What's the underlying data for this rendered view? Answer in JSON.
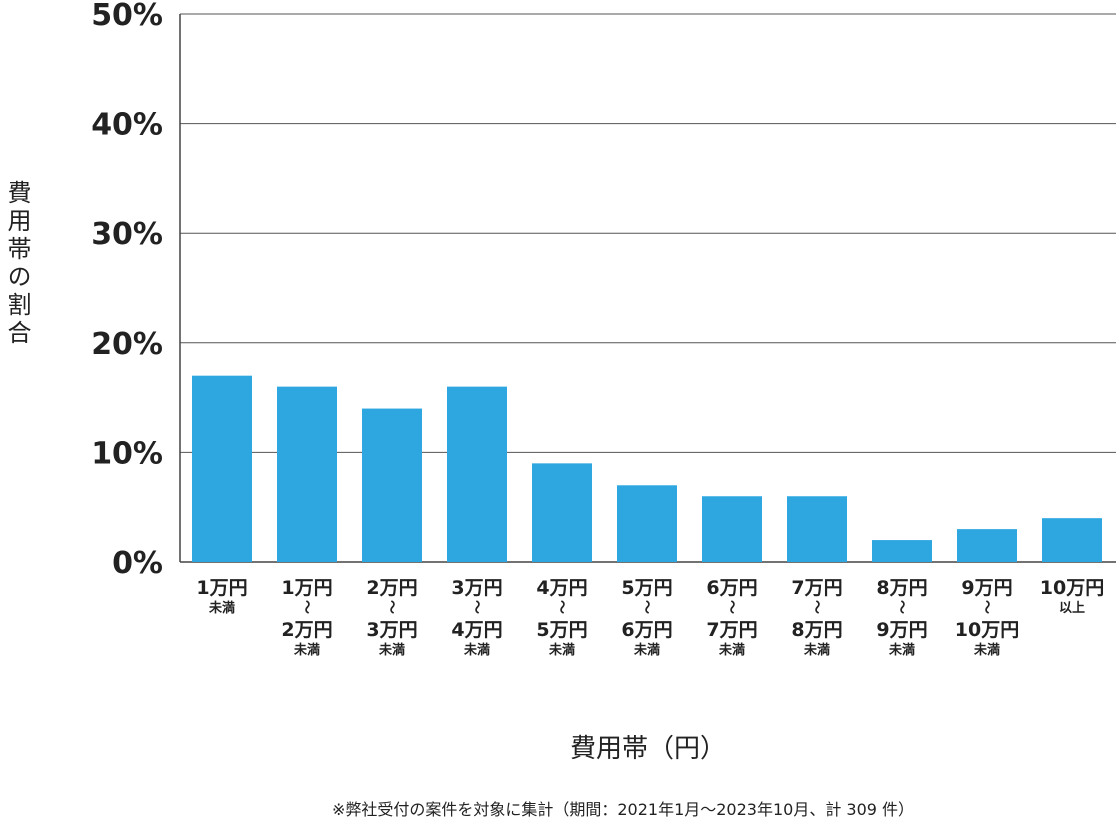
{
  "chart_data": {
    "type": "bar",
    "ylabel": "費用帯の割合",
    "xlabel": "費用帯（円）",
    "note": "※弊社受付の案件を対象に集計（期間：2021年1月～2023年10月、計 309 件）",
    "ylim": [
      0,
      50
    ],
    "yticks": [
      "0%",
      "10%",
      "20%",
      "30%",
      "40%",
      "50%"
    ],
    "ytick_values": [
      0,
      10,
      20,
      30,
      40,
      50
    ],
    "grid": true,
    "bar_color": "#2ea7e0",
    "categories": [
      [
        "1万円",
        "未満"
      ],
      [
        "1万円",
        "～",
        "2万円",
        "未満"
      ],
      [
        "2万円",
        "～",
        "3万円",
        "未満"
      ],
      [
        "3万円",
        "～",
        "4万円",
        "未満"
      ],
      [
        "4万円",
        "～",
        "5万円",
        "未満"
      ],
      [
        "5万円",
        "～",
        "6万円",
        "未満"
      ],
      [
        "6万円",
        "～",
        "7万円",
        "未満"
      ],
      [
        "7万円",
        "～",
        "8万円",
        "未満"
      ],
      [
        "8万円",
        "～",
        "9万円",
        "未満"
      ],
      [
        "9万円",
        "～",
        "10万円",
        "未満"
      ],
      [
        "10万円",
        "以上"
      ]
    ],
    "values": [
      17,
      16,
      14,
      16,
      9,
      7,
      6,
      6,
      2,
      3,
      4
    ]
  }
}
